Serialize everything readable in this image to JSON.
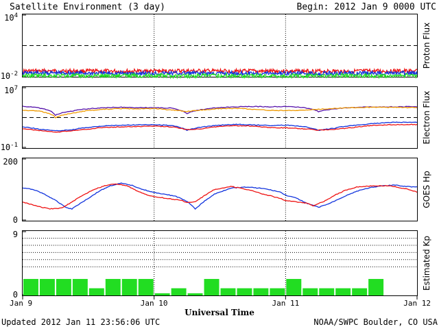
{
  "title": "Satellite Environment (3 day)",
  "begin": "Begin:  2012 Jan 9 0000 UTC",
  "updated": "Updated 2012 Jan 11 23:56:06 UTC",
  "credit": "NOAA/SWPC Boulder, CO USA",
  "colors": {
    "red": "#ee1111",
    "blue": "#1133dd",
    "green": "#22dd22",
    "orange": "#ee9900",
    "purple": "#5511aa"
  },
  "chart_data": {
    "type": "line",
    "x_axis": {
      "label": "Universal Time",
      "range_hours": [
        0,
        72
      ],
      "ticks": [
        {
          "hour": 0,
          "label": "Jan 9"
        },
        {
          "hour": 24,
          "label": "Jan 10"
        },
        {
          "hour": 48,
          "label": "Jan 11"
        },
        {
          "hour": 72,
          "label": "Jan 12"
        }
      ]
    },
    "panels": [
      {
        "ylabel": "Proton Flux",
        "scale": "log",
        "ylim": [
          0.01,
          10000
        ],
        "tick_labels": [
          "10^4",
          "10^-2"
        ],
        "threshold": 10,
        "series": [
          {
            "color": "red",
            "hours": [
              0,
              6,
              12,
              18,
              24,
              30,
              36,
              42,
              48,
              54,
              60,
              66,
              72
            ],
            "values": [
              0.035,
              0.036,
              0.035,
              0.034,
              0.035,
              0.036,
              0.035,
              0.034,
              0.035,
              0.035,
              0.034,
              0.035,
              0.035
            ]
          },
          {
            "color": "blue",
            "hours": [
              0,
              6,
              12,
              18,
              24,
              30,
              36,
              42,
              48,
              54,
              60,
              66,
              72
            ],
            "values": [
              0.022,
              0.023,
              0.022,
              0.021,
              0.022,
              0.022,
              0.021,
              0.022,
              0.022,
              0.021,
              0.022,
              0.022,
              0.022
            ]
          },
          {
            "color": "green",
            "hours": [
              0,
              6,
              12,
              18,
              24,
              30,
              36,
              42,
              48,
              54,
              60,
              66,
              72
            ],
            "values": [
              0.013,
              0.013,
              0.012,
              0.013,
              0.013,
              0.012,
              0.013,
              0.013,
              0.012,
              0.013,
              0.013,
              0.012,
              0.013
            ]
          }
        ]
      },
      {
        "ylabel": "Electron Flux",
        "scale": "log",
        "ylim": [
          0.1,
          10000000
        ],
        "tick_labels": [
          "10^7",
          "10^-1"
        ],
        "threshold": 1000,
        "series": [
          {
            "color": "purple",
            "hours": [
              0,
              3,
              6,
              9,
              12,
              15,
              18,
              21,
              24,
              27,
              30,
              33,
              36,
              39,
              42,
              45,
              48,
              51,
              54,
              57,
              60,
              63,
              66,
              69,
              72
            ],
            "values": [
              30000,
              18000,
              2000,
              7000,
              14000,
              20000,
              22000,
              20000,
              20000,
              17000,
              3500,
              12000,
              20000,
              25000,
              28000,
              26000,
              28000,
              22000,
              6000,
              14000,
              20000,
              25000,
              25000,
              26000,
              27000
            ]
          },
          {
            "color": "orange",
            "hours": [
              0,
              3,
              6,
              9,
              12,
              15,
              18,
              21,
              24,
              27,
              30,
              33,
              36,
              39,
              42,
              45,
              48,
              51,
              54,
              57,
              60,
              63,
              66,
              69,
              72
            ],
            "values": [
              9000,
              7000,
              1000,
              3500,
              8000,
              12000,
              15000,
              14000,
              15000,
              10000,
              6000,
              10000,
              15000,
              16000,
              12000,
              9000,
              8000,
              9000,
              12000,
              16000,
              20000,
              22000,
              22000,
              21000,
              20000
            ]
          },
          {
            "color": "blue",
            "hours": [
              0,
              3,
              6,
              9,
              12,
              15,
              18,
              21,
              24,
              27,
              30,
              33,
              36,
              39,
              42,
              45,
              48,
              51,
              54,
              57,
              60,
              63,
              66,
              69,
              72
            ],
            "values": [
              60,
              30,
              18,
              25,
              50,
              80,
              100,
              110,
              120,
              90,
              20,
              60,
              100,
              130,
              110,
              90,
              100,
              70,
              20,
              40,
              90,
              140,
              200,
              250,
              230
            ]
          },
          {
            "color": "red",
            "hours": [
              0,
              3,
              6,
              9,
              12,
              15,
              18,
              21,
              24,
              27,
              30,
              33,
              36,
              39,
              42,
              45,
              48,
              51,
              54,
              57,
              60,
              63,
              66,
              69,
              72
            ],
            "values": [
              35,
              20,
              12,
              18,
              30,
              50,
              60,
              65,
              75,
              60,
              25,
              35,
              70,
              85,
              75,
              50,
              45,
              35,
              22,
              28,
              45,
              80,
              110,
              120,
              120
            ]
          }
        ]
      },
      {
        "ylabel": "GOES Hp",
        "scale": "linear",
        "ylim": [
          0,
          200
        ],
        "tick_labels": [
          "200",
          "0"
        ],
        "series": [
          {
            "color": "blue",
            "hours": [
              0,
              2,
              4,
              6,
              8,
              9,
              10,
              12,
              14,
              16,
              18,
              20,
              22,
              24,
              26,
              28,
              30,
              31.5,
              33,
              35,
              38,
              41,
              44,
              47,
              48,
              50,
              52,
              54,
              56,
              58,
              60,
              62,
              64,
              66,
              68,
              70,
              72
            ],
            "values": [
              105,
              100,
              85,
              65,
              42,
              38,
              50,
              72,
              95,
              112,
              120,
              113,
              100,
              90,
              85,
              78,
              62,
              38,
              60,
              85,
              105,
              108,
              103,
              92,
              82,
              72,
              55,
              43,
              55,
              72,
              88,
              100,
              108,
              112,
              114,
              110,
              108
            ]
          },
          {
            "color": "red",
            "hours": [
              0,
              1,
              3,
              5,
              7,
              9,
              11,
              13,
              15,
              17,
              19,
              21,
              23,
              25,
              27,
              29,
              30,
              31.5,
              33,
              35,
              38,
              41,
              44,
              47,
              48,
              50,
              52,
              53,
              55,
              57,
              59,
              61,
              64,
              67,
              70,
              72
            ],
            "values": [
              60,
              55,
              45,
              38,
              40,
              60,
              82,
              100,
              112,
              118,
              112,
              95,
              80,
              75,
              70,
              65,
              58,
              60,
              78,
              100,
              110,
              100,
              85,
              72,
              65,
              60,
              56,
              48,
              62,
              82,
              98,
              108,
              112,
              112,
              102,
              92
            ]
          }
        ]
      },
      {
        "ylabel": "Estimated Kp",
        "type": "bar",
        "ylim": [
          0,
          9
        ],
        "tick_labels": [
          "9",
          "0"
        ],
        "gridlines": [
          4,
          5,
          6,
          7,
          8
        ],
        "interval_hours": 3,
        "values": [
          2.3,
          2.3,
          2.3,
          2.3,
          1,
          2.3,
          2.3,
          2.3,
          0.3,
          1,
          0.3,
          2.3,
          1,
          1,
          1,
          1,
          2.3,
          1,
          1,
          1,
          1,
          2.3,
          0,
          0
        ]
      }
    ]
  }
}
